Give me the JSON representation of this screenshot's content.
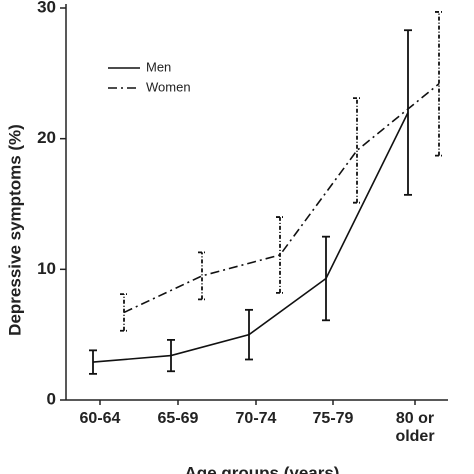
{
  "chart_data": {
    "type": "line",
    "y_label": "Depressive symptoms (%)",
    "x_label": "Age groups (years)",
    "categories": [
      "60-64",
      "65-69",
      "70-74",
      "75-79",
      "80 or older"
    ],
    "series": [
      {
        "name": "Men",
        "color": "#111111",
        "dash": "solid",
        "values": [
          2.9,
          3.4,
          5.0,
          9.3,
          22.0
        ],
        "errors": [
          0.9,
          1.2,
          1.9,
          3.2,
          6.3
        ]
      },
      {
        "name": "Women",
        "color": "#111111",
        "dash": "dashdot",
        "values": [
          6.7,
          9.5,
          11.1,
          19.1,
          24.2
        ],
        "errors": [
          1.4,
          1.8,
          2.9,
          4.0,
          5.5
        ]
      }
    ],
    "ylim": [
      0,
      30
    ],
    "yticks": [
      0,
      10,
      20,
      30
    ],
    "grid": false
  }
}
